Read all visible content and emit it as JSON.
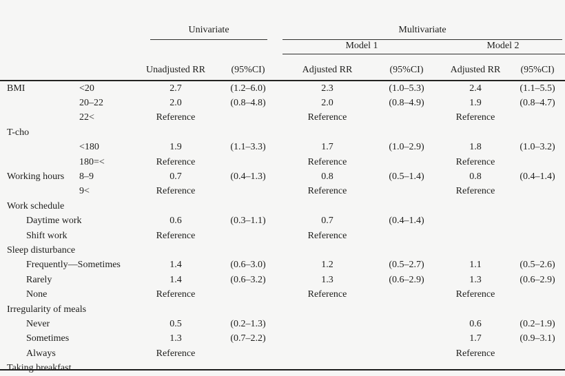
{
  "header": {
    "univariate": "Univariate",
    "multivariate": "Multivariate",
    "model1": "Model 1",
    "model2": "Model 2",
    "unadjusted_rr": "Unadjusted RR",
    "adjusted_rr": "Adjusted RR",
    "ci": "(95%CI)"
  },
  "rows": [
    {
      "label": "BMI",
      "sub": "<20",
      "indent": false,
      "values": [
        "2.7",
        "(1.2–6.0)",
        "2.3",
        "(1.0–5.3)",
        "2.4",
        "(1.1–5.5)"
      ]
    },
    {
      "label": "",
      "sub": "20–22",
      "indent": false,
      "values": [
        "2.0",
        "(0.8–4.8)",
        "2.0",
        "(0.8–4.9)",
        "1.9",
        "(0.8–4.7)"
      ]
    },
    {
      "label": "",
      "sub": "22<",
      "indent": false,
      "values": [
        "Reference",
        "",
        "Reference",
        "",
        "Reference",
        ""
      ]
    },
    {
      "label": "T-cho",
      "sub": "",
      "indent": false,
      "values": [
        "",
        "",
        "",
        "",
        "",
        ""
      ]
    },
    {
      "label": "",
      "sub": "<180",
      "indent": false,
      "values": [
        "1.9",
        "(1.1–3.3)",
        "1.7",
        "(1.0–2.9)",
        "1.8",
        "(1.0–3.2)"
      ]
    },
    {
      "label": "",
      "sub": "180=<",
      "indent": false,
      "values": [
        "Reference",
        "",
        "Reference",
        "",
        "Reference",
        ""
      ]
    },
    {
      "label": "Working hours",
      "sub": "8–9",
      "indent": false,
      "values": [
        "0.7",
        "(0.4–1.3)",
        "0.8",
        "(0.5–1.4)",
        "0.8",
        "(0.4–1.4)"
      ]
    },
    {
      "label": "",
      "sub": "9<",
      "indent": false,
      "values": [
        "Reference",
        "",
        "Reference",
        "",
        "Reference",
        ""
      ]
    },
    {
      "label": "Work schedule",
      "sub": "",
      "indent": false,
      "values": [
        "",
        "",
        "",
        "",
        "",
        ""
      ]
    },
    {
      "label": "Daytime work",
      "sub": "",
      "indent": true,
      "values": [
        "0.6",
        "(0.3–1.1)",
        "0.7",
        "(0.4–1.4)",
        "",
        ""
      ]
    },
    {
      "label": "Shift work",
      "sub": "",
      "indent": true,
      "values": [
        "Reference",
        "",
        "Reference",
        "",
        "",
        ""
      ]
    },
    {
      "label": "Sleep disturbance",
      "sub": "",
      "indent": false,
      "values": [
        "",
        "",
        "",
        "",
        "",
        ""
      ]
    },
    {
      "label": "Frequently—Sometimes",
      "sub": "",
      "indent": true,
      "values": [
        "1.4",
        "(0.6–3.0)",
        "1.2",
        "(0.5–2.7)",
        "1.1",
        "(0.5–2.6)"
      ]
    },
    {
      "label": "Rarely",
      "sub": "",
      "indent": true,
      "values": [
        "1.4",
        "(0.6–3.2)",
        "1.3",
        "(0.6–2.9)",
        "1.3",
        "(0.6–2.9)"
      ]
    },
    {
      "label": "None",
      "sub": "",
      "indent": true,
      "values": [
        "Reference",
        "",
        "Reference",
        "",
        "Reference",
        ""
      ]
    },
    {
      "label": "Irregularity of meals",
      "sub": "",
      "indent": false,
      "values": [
        "",
        "",
        "",
        "",
        "",
        ""
      ]
    },
    {
      "label": "Never",
      "sub": "",
      "indent": true,
      "values": [
        "0.5",
        "(0.2–1.3)",
        "",
        "",
        "0.6",
        "(0.2–1.9)"
      ]
    },
    {
      "label": "Sometimes",
      "sub": "",
      "indent": true,
      "values": [
        "1.3",
        "(0.7–2.2)",
        "",
        "",
        "1.7",
        "(0.9–3.1)"
      ]
    },
    {
      "label": "Always",
      "sub": "",
      "indent": true,
      "values": [
        "Reference",
        "",
        "",
        "",
        "Reference",
        ""
      ]
    },
    {
      "label": "Taking breakfast",
      "sub": "",
      "indent": false,
      "values": [
        "",
        "",
        "",
        "",
        "",
        ""
      ]
    }
  ],
  "colors": {
    "background": "#f6f6f5",
    "text": "#1d1d1b",
    "rule_light": "#2e2e2c",
    "rule_heavy": "#1a1a1a"
  }
}
